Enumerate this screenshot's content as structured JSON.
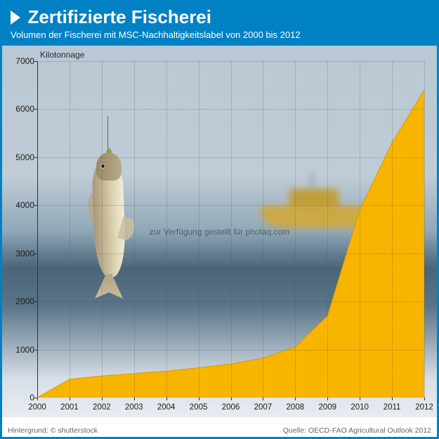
{
  "header": {
    "title": "Zertifizierte Fischerei",
    "subtitle": "Volumen der Fischerei mit MSC-Nachhaltigkeitslabel von 2000 bis 2012",
    "bg_color": "#0081c3",
    "text_color": "#ffffff",
    "title_fontsize": 26,
    "subtitle_fontsize": 13
  },
  "chart": {
    "type": "area",
    "ylabel": "Kilotonnage",
    "ylabel_fontsize": 12,
    "categories": [
      "2000",
      "2001",
      "2002",
      "2003",
      "2004",
      "2005",
      "2006",
      "2007",
      "2008",
      "2009",
      "2010",
      "2011",
      "2012"
    ],
    "values": [
      0,
      380,
      450,
      500,
      550,
      620,
      700,
      820,
      1050,
      1700,
      3900,
      5300,
      6400
    ],
    "ylim": [
      0,
      7000
    ],
    "ytick_step": 1000,
    "yticks": [
      0,
      1000,
      2000,
      3000,
      4000,
      5000,
      6000,
      7000
    ],
    "fill_color": "#f7b500",
    "line_color": "#d89800",
    "grid_color": "rgba(80,80,80,0.45)",
    "axis_color": "#333333",
    "tick_fontsize": 12,
    "bg_gradient_top": "#b8c8d4",
    "bg_gradient_mid": "#6b8598",
    "bg_gradient_bottom": "#e8ecf0"
  },
  "decor": {
    "boat_color": "#d4a830",
    "fish_body_color": "#c8bc98",
    "fish_lure_color": "#7fb84a"
  },
  "watermark": {
    "text": "zur Verfügung gestellt für photaq.com",
    "color": "rgba(30,30,30,0.55)",
    "fontsize": 12
  },
  "footer": {
    "left": "Hintergrund: © shutterstock",
    "right": "Quelle: OECD-FAO Agricultural Outlook 2012",
    "fontsize": 10.5,
    "color": "#666666"
  }
}
